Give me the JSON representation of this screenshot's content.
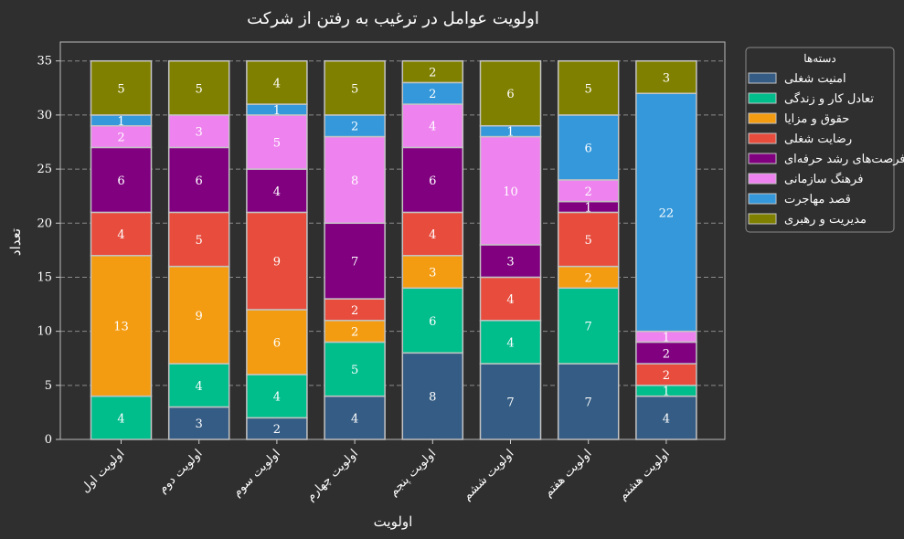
{
  "chart_data": {
    "type": "bar",
    "stacked": true,
    "title": "اولویت عوامل در ترغیب به رفتن از شرکت",
    "xlabel": "اولویت",
    "ylabel": "تعداد",
    "ylim": [
      0,
      36.75
    ],
    "yticks": [
      0,
      5,
      10,
      15,
      20,
      25,
      30,
      35
    ],
    "grid": true,
    "legend": {
      "title": "دسته‌ها",
      "position": "right"
    },
    "categories": [
      "اولویت اول",
      "اولویت دوم",
      "اولویت سوم",
      "اولویت چهارم",
      "اولویت پنجم",
      "اولویت ششم",
      "اولویت هفتم",
      "اولویت هشتم"
    ],
    "series": [
      {
        "name": "امنیت شغلی",
        "color": "#355c84",
        "values": [
          0,
          3,
          2,
          4,
          8,
          7,
          7,
          4
        ]
      },
      {
        "name": "تعادل کار و زندگی",
        "color": "#00bd8c",
        "values": [
          4,
          4,
          4,
          5,
          6,
          4,
          7,
          1
        ]
      },
      {
        "name": "حقوق و مزایا",
        "color": "#f39c12",
        "values": [
          13,
          9,
          6,
          2,
          3,
          0,
          2,
          0
        ]
      },
      {
        "name": "رضایت شغلی",
        "color": "#e74c3c",
        "values": [
          4,
          5,
          9,
          2,
          4,
          4,
          5,
          2
        ]
      },
      {
        "name": "فرصت‌های رشد حرفه‌ای",
        "color": "#800080",
        "values": [
          6,
          6,
          4,
          7,
          6,
          3,
          1,
          2
        ]
      },
      {
        "name": "فرهنگ سازمانی",
        "color": "#ee82ee",
        "values": [
          2,
          3,
          5,
          8,
          4,
          10,
          2,
          1
        ]
      },
      {
        "name": "قصد مهاجرت",
        "color": "#3498db",
        "values": [
          1,
          0,
          1,
          2,
          2,
          1,
          6,
          22
        ]
      },
      {
        "name": "مدیریت و رهبری",
        "color": "#808000",
        "values": [
          5,
          5,
          4,
          5,
          2,
          6,
          5,
          3
        ]
      }
    ]
  }
}
